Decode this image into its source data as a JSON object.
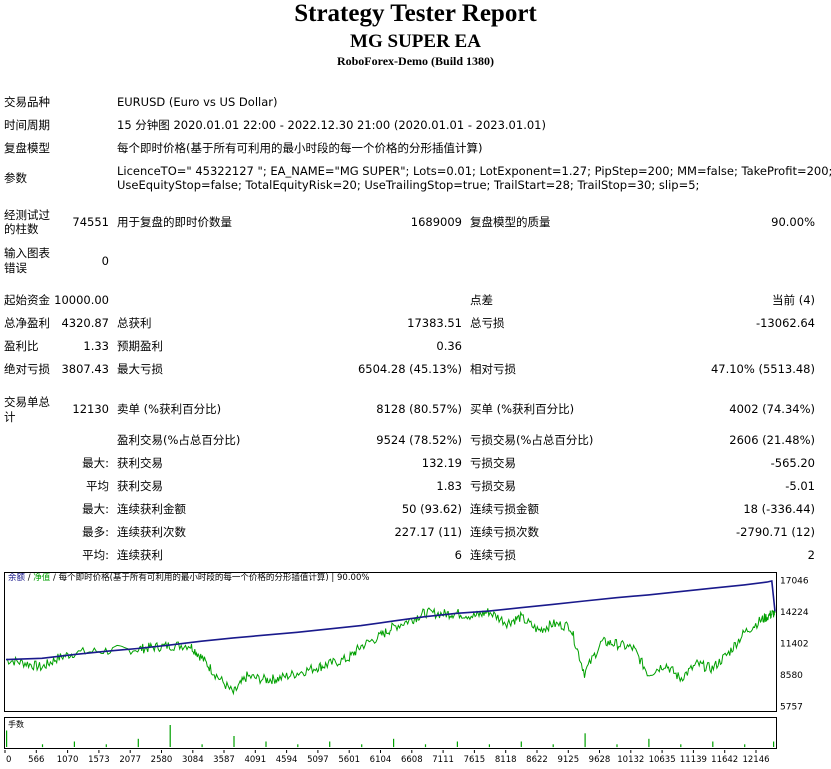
{
  "header": {
    "title": "Strategy Tester Report",
    "ea_name": "MG SUPER EA",
    "server": "RoboForex-Demo (Build 1380)"
  },
  "info": {
    "symbol_label": "交易品种",
    "symbol_value": "EURUSD (Euro vs US Dollar)",
    "period_label": "时间周期",
    "period_value": "15 分钟图 2020.01.01 22:00 - 2022.12.30 21:00 (2020.01.01 - 2023.01.01)",
    "model_label": "复盘模型",
    "model_value": "每个即时价格(基于所有可利用的最小时段的每一个价格的分形插值计算)",
    "params_label": "参数",
    "params_line1": "LicenceTO=\" 45322127 \"; EA_NAME=\"MG SUPER\"; Lots=0.01; LotExponent=1.27; PipStep=200; MM=false; TakeProfit=200;",
    "params_line2": "UseEquityStop=false; TotalEquityRisk=20; UseTrailingStop=true; TrailStart=28; TrailStop=30; slip=5;"
  },
  "stats": {
    "bars_label_1": "经测试过",
    "bars_label_2": "的柱数",
    "bars_value": "74551",
    "ticks_label": "用于复盘的即时价数量",
    "ticks_value": "1689009",
    "quality_label": "复盘模型的质量",
    "quality_value": "90.00%",
    "mismatch_label_1": "输入图表",
    "mismatch_label_2": "错误",
    "mismatch_value": "0",
    "deposit_label": "起始资金",
    "deposit_value": "10000.00",
    "spread_label": "点差",
    "spread_value": "当前 (4)",
    "net_label": "总净盈利",
    "net_value": "4320.87",
    "gross_profit_label": "总获利",
    "gross_profit_value": "17383.51",
    "gross_loss_label": "总亏损",
    "gross_loss_value": "-13062.64",
    "pf_label": "盈利比",
    "pf_value": "1.33",
    "payoff_label": "预期盈利",
    "payoff_value": "0.36",
    "abs_dd_label": "绝对亏损",
    "abs_dd_value": "3807.43",
    "max_dd_label": "最大亏损",
    "max_dd_value": "6504.28 (45.13%)",
    "rel_dd_label": "相对亏损",
    "rel_dd_value": "47.10% (5513.48)",
    "trades_label_1": "交易单总",
    "trades_label_2": "计",
    "trades_value": "12130",
    "short_label": "卖单 (%获利百分比)",
    "short_value": "8128 (80.57%)",
    "long_label": "买单 (%获利百分比)",
    "long_value": "4002 (74.34%)",
    "profit_trades_label": "盈利交易(%占总百分比)",
    "profit_trades_value": "9524 (78.52%)",
    "loss_trades_label": "亏损交易(%占总百分比)",
    "loss_trades_value": "2606 (21.48%)",
    "largest_label": "最大:",
    "largest_profit_label": "获利交易",
    "largest_profit_value": "132.19",
    "largest_loss_label": "亏损交易",
    "largest_loss_value": "-565.20",
    "average_label": "平均",
    "average_profit_label": "获利交易",
    "average_profit_value": "1.83",
    "average_loss_label": "亏损交易",
    "average_loss_value": "-5.01",
    "max_label": "最大:",
    "max_consec_win_label": "连续获利金额",
    "max_consec_win_value": "50 (93.62)",
    "max_consec_loss_label": "连续亏损金额",
    "max_consec_loss_value": "18 (-336.44)",
    "most_label": "最多:",
    "most_consec_profit_label": "连续获利次数",
    "most_consec_profit_value": "227.17 (11)",
    "most_consec_loss_label": "连续亏损次数",
    "most_consec_loss_value": "-2790.71 (12)",
    "avg2_label": "平均:",
    "avg_consec_win_label": "连续获利",
    "avg_consec_win_value": "6",
    "avg_consec_loss_label": "连续亏损",
    "avg_consec_loss_value": "2"
  },
  "chart_data": {
    "type": "line",
    "legend": {
      "balance": "余额",
      "sep1": " / ",
      "equity": "净值",
      "sep2": " / ",
      "model": "每个即时价格(基于所有可利用的最小时段的每一个价格的分形插值计算)",
      "sep3": " | ",
      "quality": "90.00%"
    },
    "colors": {
      "balance": "#1a1a8c",
      "equity": "#00a000",
      "volume": "#00a000"
    },
    "ylim": [
      5757,
      17046
    ],
    "y_ticks": [
      "17046",
      "14224",
      "11402",
      "8580",
      "5757"
    ],
    "x_ticks": [
      "0",
      "566",
      "1070",
      "1573",
      "2077",
      "2580",
      "3084",
      "3587",
      "4091",
      "4594",
      "5097",
      "5601",
      "6104",
      "6608",
      "7111",
      "7615",
      "8118",
      "8622",
      "9125",
      "9628",
      "10132",
      "10635",
      "11139",
      "11642",
      "12146"
    ],
    "xlim": [
      0,
      12130
    ],
    "volume_label": "手数",
    "series": [
      {
        "name": "余额",
        "x": [
          0,
          566,
          1070,
          1573,
          2077,
          2580,
          3084,
          3587,
          4091,
          4594,
          5097,
          5601,
          6104,
          6608,
          7111,
          7615,
          8118,
          8622,
          9125,
          9628,
          10132,
          10635,
          11139,
          11642,
          12000,
          12080,
          12130
        ],
        "y": [
          10000,
          10120,
          10450,
          10750,
          11000,
          11300,
          11650,
          11950,
          12200,
          12450,
          12750,
          13050,
          13450,
          13850,
          14150,
          14350,
          14650,
          14950,
          15250,
          15550,
          15800,
          16100,
          16400,
          16700,
          16950,
          17046,
          14320
        ]
      },
      {
        "name": "净值",
        "x": [
          0,
          300,
          566,
          800,
          1070,
          1573,
          2077,
          2300,
          2580,
          2900,
          3084,
          3300,
          3587,
          3800,
          4091,
          4300,
          4594,
          4900,
          5097,
          5400,
          5601,
          5900,
          6104,
          6400,
          6608,
          6900,
          7111,
          7400,
          7615,
          7900,
          8118,
          8400,
          8622,
          8900,
          9125,
          9400,
          9628,
          9900,
          10132,
          10400,
          10635,
          10900,
          11139,
          11400,
          11642,
          11900,
          12050,
          12130
        ],
        "y": [
          10000,
          9700,
          9300,
          10100,
          10600,
          10800,
          10950,
          11100,
          11250,
          11300,
          10200,
          8700,
          7000,
          8500,
          8200,
          8300,
          8800,
          9300,
          9600,
          10100,
          11200,
          12100,
          12900,
          13600,
          14200,
          14100,
          14150,
          13900,
          14300,
          13300,
          13800,
          12600,
          13200,
          13000,
          8800,
          11600,
          11400,
          11000,
          8700,
          9600,
          8300,
          9600,
          9200,
          10600,
          12400,
          13500,
          14000,
          14200
        ]
      }
    ],
    "volume": {
      "x": [
        0,
        566,
        1070,
        1573,
        2077,
        2580,
        3084,
        3587,
        4091,
        4594,
        5097,
        5601,
        6104,
        6608,
        7111,
        7615,
        8118,
        8622,
        9125,
        9628,
        10132,
        10635,
        11139,
        11642,
        12146
      ],
      "y": [
        0.06,
        0.01,
        0.02,
        0.01,
        0.03,
        0.08,
        0.01,
        0.04,
        0.02,
        0.01,
        0.02,
        0.01,
        0.03,
        0.01,
        0.02,
        0.01,
        0.02,
        0.01,
        0.05,
        0.01,
        0.03,
        0.01,
        0.02,
        0.01,
        0.02
      ]
    }
  }
}
